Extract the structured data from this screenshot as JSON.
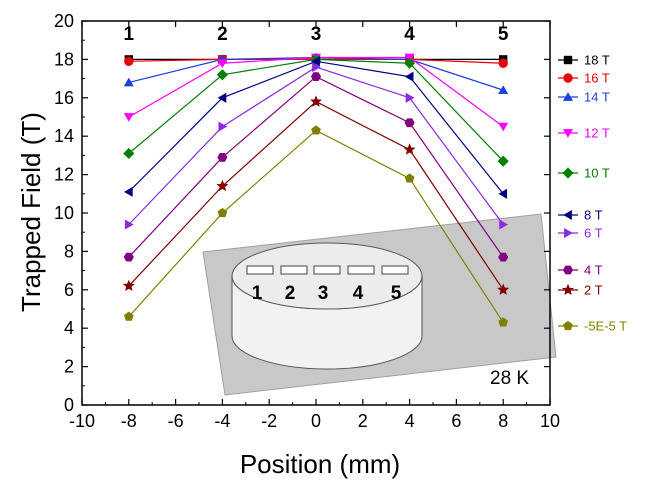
{
  "chart_data": {
    "type": "line",
    "xlabel": "Position (mm)",
    "ylabel": "Trapped Field (T)",
    "xlim": [
      -10,
      10
    ],
    "ylim": [
      0,
      20
    ],
    "xticks": [
      "-10",
      "-8",
      "-6",
      "-4",
      "-2",
      "0",
      "2",
      "4",
      "6",
      "8",
      "10"
    ],
    "yticks": [
      "0",
      "2",
      "4",
      "6",
      "8",
      "10",
      "12",
      "14",
      "16",
      "18",
      "20"
    ],
    "x": [
      -8,
      -4,
      0,
      4,
      8
    ],
    "position_labels": [
      "1",
      "2",
      "3",
      "4",
      "5"
    ],
    "annotation": "28 K",
    "inset_labels": [
      "1",
      "2",
      "3",
      "4",
      "5"
    ],
    "legend_placement": "right",
    "series": [
      {
        "name": "18 T",
        "color": "#000000",
        "marker": "square",
        "values": [
          18.0,
          18.0,
          18.0,
          18.0,
          18.0
        ]
      },
      {
        "name": "16 T",
        "color": "#e8000b",
        "marker": "circle",
        "values": [
          17.9,
          18.0,
          18.0,
          18.0,
          17.8
        ]
      },
      {
        "name": "14 T",
        "color": "#1f3fe0",
        "marker": "triangle-up",
        "values": [
          16.8,
          18.0,
          18.1,
          18.0,
          16.4
        ]
      },
      {
        "name": "12 T",
        "color": "#ff00ff",
        "marker": "triangle-down",
        "values": [
          15.0,
          17.8,
          18.1,
          18.1,
          14.5
        ]
      },
      {
        "name": "10 T",
        "color": "#008000",
        "marker": "diamond",
        "values": [
          13.1,
          17.2,
          18.0,
          17.8,
          12.7
        ]
      },
      {
        "name": "8 T",
        "color": "#000080",
        "marker": "triangle-left",
        "values": [
          11.1,
          16.0,
          17.9,
          17.1,
          11.0
        ]
      },
      {
        "name": "6 T",
        "color": "#8a2be2",
        "marker": "triangle-right",
        "values": [
          9.4,
          14.5,
          17.6,
          16.0,
          9.4
        ]
      },
      {
        "name": "4 T",
        "color": "#800080",
        "marker": "hexagon",
        "values": [
          7.7,
          12.9,
          17.1,
          14.7,
          7.7
        ]
      },
      {
        "name": "2 T",
        "color": "#800000",
        "marker": "star",
        "values": [
          6.2,
          11.4,
          15.8,
          13.3,
          6.0
        ]
      },
      {
        "name": "-5E-5 T",
        "color": "#808000",
        "marker": "pentagon",
        "values": [
          4.6,
          10.0,
          14.3,
          11.8,
          4.3
        ]
      }
    ]
  }
}
